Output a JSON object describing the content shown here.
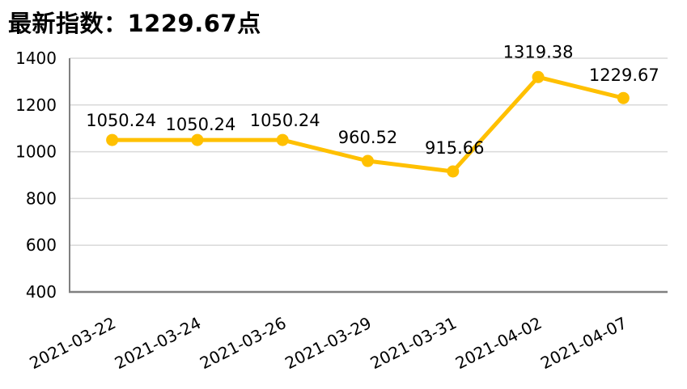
{
  "header": {
    "title": "最新指数：1229.67点"
  },
  "colors": {
    "line": "#FFC000",
    "marker": "#FFC000",
    "grid": "#D9D9D9",
    "axis": "#808080",
    "label_text": "#000000",
    "background": "#FFFFFF"
  },
  "chart_data": {
    "type": "line",
    "title": "最新指数：1229.67点",
    "categories": [
      "2021-03-22",
      "2021-03-24",
      "2021-03-26",
      "2021-03-29",
      "2021-03-31",
      "2021-04-02",
      "2021-04-07"
    ],
    "series": [
      {
        "name": "最新指数",
        "values": [
          1050.24,
          1050.24,
          1050.24,
          960.52,
          915.66,
          1319.38,
          1229.67
        ]
      }
    ],
    "point_labels": [
      "1050.24",
      "1050.24",
      "1050.24",
      "960.52",
      "915.66",
      "1319.38",
      "1229.67"
    ],
    "latest_value_label": "1229.67",
    "xlabel": "",
    "ylabel": "",
    "ylim": [
      400,
      1400
    ],
    "yticks": [
      400,
      600,
      800,
      1000,
      1200,
      1400
    ],
    "grid": true,
    "legend_position": "none",
    "line_color": "#FFC000"
  }
}
